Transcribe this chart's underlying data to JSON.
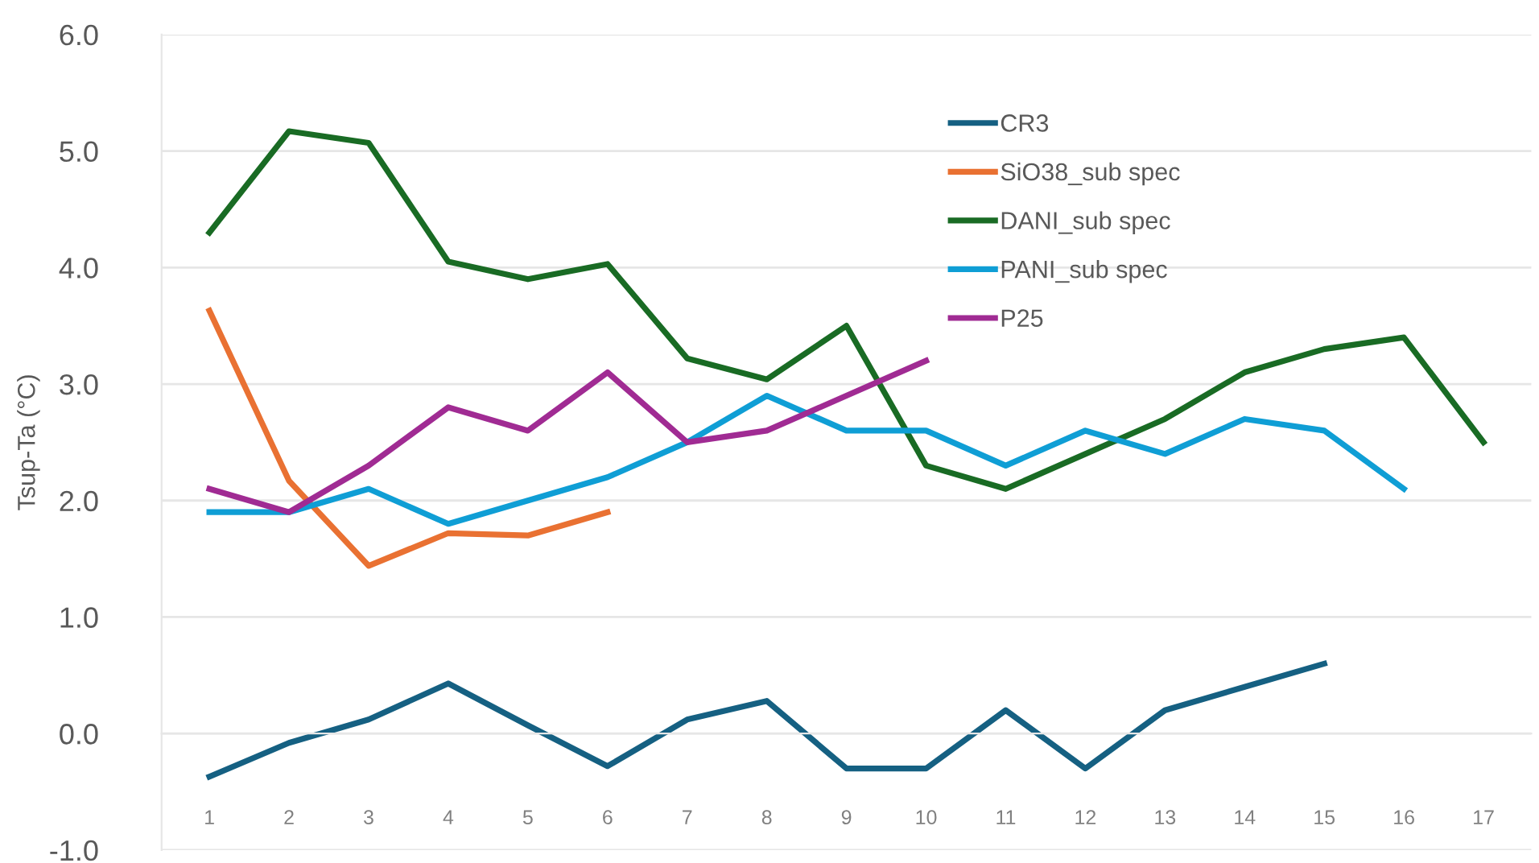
{
  "chart_data": {
    "type": "line",
    "ylabel": "Tsup-Ta (°C)",
    "categories": [
      "1",
      "2",
      "3",
      "4",
      "5",
      "6",
      "7",
      "8",
      "9",
      "10",
      "11",
      "12",
      "13",
      "14",
      "15",
      "16",
      "17"
    ],
    "series": [
      {
        "name": "CR3",
        "color": "#156082",
        "values": [
          -0.37,
          -0.08,
          0.12,
          0.43,
          0.07,
          -0.28,
          0.12,
          0.28,
          -0.3,
          -0.3,
          0.2,
          -0.3,
          0.2,
          0.4,
          0.6,
          null,
          null
        ]
      },
      {
        "name": "SiO38_sub spec",
        "color": "#e97132",
        "values": [
          3.63,
          2.17,
          1.44,
          1.72,
          1.7,
          1.9,
          null,
          null,
          null,
          null,
          null,
          null,
          null,
          null,
          null,
          null,
          null
        ]
      },
      {
        "name": "DANI_sub spec",
        "color": "#196b24",
        "values": [
          4.3,
          5.17,
          5.07,
          4.05,
          3.9,
          4.03,
          3.22,
          3.04,
          3.5,
          2.3,
          2.1,
          2.4,
          2.7,
          3.1,
          3.3,
          3.4,
          2.5
        ]
      },
      {
        "name": "PANI_sub spec",
        "color": "#0f9ed5",
        "values": [
          1.9,
          1.9,
          2.1,
          1.8,
          2.0,
          2.2,
          2.5,
          2.9,
          2.6,
          2.6,
          2.3,
          2.6,
          2.4,
          2.7,
          2.6,
          2.1,
          null
        ]
      },
      {
        "name": "P25",
        "color": "#a02b93",
        "values": [
          2.1,
          1.9,
          2.3,
          2.8,
          2.6,
          3.1,
          2.5,
          2.6,
          2.9,
          3.2,
          null,
          null,
          null,
          null,
          null,
          null,
          null
        ]
      }
    ],
    "ylim": [
      -1,
      6
    ],
    "yticks": [
      {
        "value": -1,
        "label": "-1.0"
      },
      {
        "value": 0,
        "label": "0.0"
      },
      {
        "value": 1,
        "label": "1.0"
      },
      {
        "value": 2,
        "label": "2.0"
      },
      {
        "value": 3,
        "label": "3.0"
      },
      {
        "value": 4,
        "label": "4.0"
      },
      {
        "value": 5,
        "label": "5.0"
      },
      {
        "value": 6,
        "label": "6.0"
      }
    ],
    "grid": "y",
    "legend": "top",
    "line_style": "solid",
    "marker": "none"
  }
}
